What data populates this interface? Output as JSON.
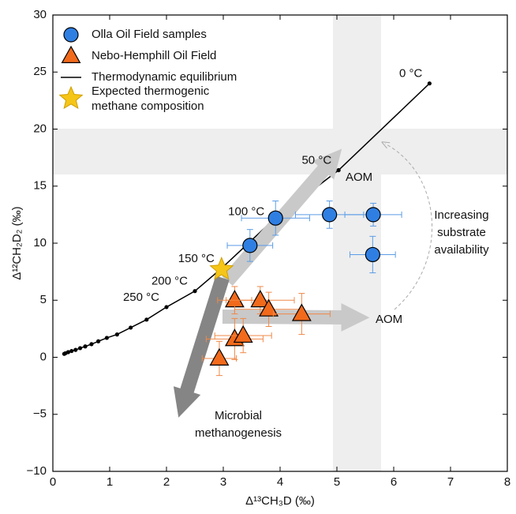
{
  "chart_data": {
    "type": "scatter",
    "xlabel": "Δ¹³CH₃D (‰)",
    "ylabel": "Δ¹²CH₂D₂ (‰)",
    "xlim": [
      0,
      8
    ],
    "ylim": [
      -10,
      30
    ],
    "xticks": [
      0,
      1,
      2,
      3,
      4,
      5,
      6,
      7,
      8
    ],
    "yticks": [
      {
        "value": -10,
        "label": "−10"
      },
      {
        "value": -5,
        "label": "−5"
      },
      0,
      5,
      10,
      15,
      20,
      25,
      30
    ],
    "legend": "upper left",
    "series": [
      {
        "name": "Olla Oil Field samples",
        "color": "#2f7fe3",
        "errcolor": "#5b9ce6",
        "marker": "circle",
        "x": [
          3.92,
          3.47,
          4.87,
          5.64,
          5.63
        ],
        "values": [
          12.2,
          9.8,
          12.5,
          12.5,
          9.0
        ],
        "xerr": [
          0.6,
          0.4,
          0.6,
          0.5,
          0.4
        ],
        "yerr": [
          1.5,
          1.4,
          1.2,
          1.0,
          1.6
        ]
      },
      {
        "name": "Nebo-Hemphill Oil Field",
        "color": "#f26a1b",
        "errcolor": "#f08848",
        "marker": "triangle",
        "x": [
          3.2,
          3.65,
          3.8,
          4.38,
          3.2,
          3.35,
          2.93
        ],
        "values": [
          5.0,
          5.0,
          4.2,
          3.8,
          1.6,
          1.9,
          -0.1
        ],
        "xerr": [
          0.3,
          0.6,
          0.6,
          0.5,
          0.5,
          0.5,
          0.3
        ],
        "yerr": [
          1.2,
          1.2,
          1.5,
          1.8,
          1.8,
          1.5,
          1.5
        ]
      },
      {
        "name": "Thermodynamic equilibrium",
        "color": "#000000",
        "marker": "line",
        "x": [
          6.63,
          5.03,
          3.85,
          2.97,
          2.5,
          2.0,
          1.65,
          1.37,
          1.13,
          0.95,
          0.8,
          0.68,
          0.57,
          0.48,
          0.4,
          0.33,
          0.27,
          0.22,
          0.2
        ],
        "values": [
          24,
          16.4,
          11.9,
          7.8,
          5.8,
          4.4,
          3.3,
          2.6,
          2.0,
          1.7,
          1.4,
          1.15,
          0.95,
          0.8,
          0.65,
          0.55,
          0.45,
          0.35,
          0.3
        ],
        "point_labels": [
          "0 °C",
          "50 °C",
          "100 °C",
          "150 °C",
          "200 °C",
          "250 °C",
          null,
          null,
          null,
          null,
          null,
          null,
          null,
          null,
          null,
          null,
          null,
          null,
          null
        ]
      },
      {
        "name": [
          "Expected thermogenic",
          "methane composition"
        ],
        "color": "#f5c518",
        "marker": "star",
        "x": [
          2.97
        ],
        "values": [
          7.7
        ]
      }
    ],
    "annotations": [
      [
        "AOM"
      ],
      [
        "AOM"
      ],
      [
        "Increasing",
        "substrate",
        "availability"
      ],
      [
        "Microbial",
        "methanogenesis"
      ]
    ]
  }
}
